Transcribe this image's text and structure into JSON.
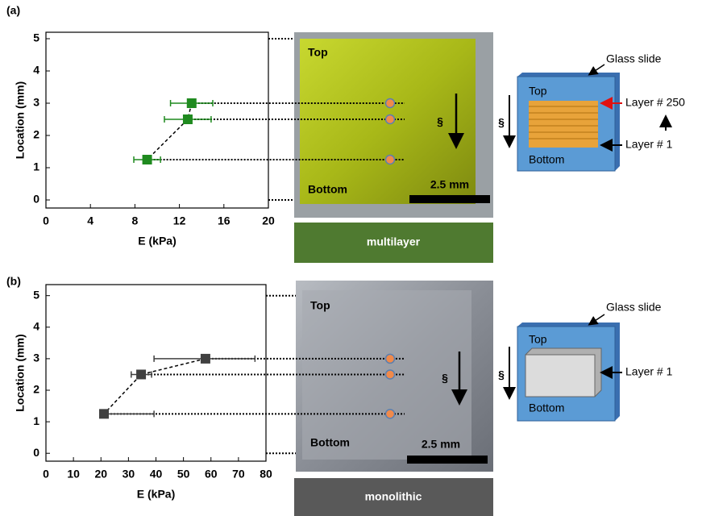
{
  "chart_data": [
    {
      "type": "scatter",
      "xlabel": "E (kPa)",
      "ylabel": "Location (mm)",
      "x": [
        13.1,
        12.75,
        9.1
      ],
      "y": [
        3,
        2.5,
        1.25
      ],
      "xerr_minus": [
        1.9,
        2.1,
        1.2
      ],
      "xerr_plus": [
        1.9,
        2.1,
        1.2
      ],
      "color": "#1f8a1f",
      "xlim": [
        0,
        20
      ],
      "ylim": [
        -0.25,
        5.2
      ],
      "xticks": [
        0,
        4,
        8,
        12,
        16,
        20
      ],
      "yticks": [
        0,
        1,
        2,
        3,
        4,
        5
      ]
    },
    {
      "type": "scatter",
      "xlabel": "E (kPa)",
      "ylabel": "Location (mm)",
      "x": [
        58,
        34.6,
        21.1
      ],
      "y": [
        3,
        2.5,
        1.25
      ],
      "xerr_minus": [
        18.7,
        3.6,
        1.5
      ],
      "xerr_plus": [
        18,
        3.8,
        18.2
      ],
      "color": "#404040",
      "xlim": [
        0,
        80
      ],
      "ylim": [
        -0.25,
        5.35
      ],
      "xticks": [
        0,
        10,
        20,
        30,
        40,
        50,
        60,
        70,
        80
      ],
      "yticks": [
        0,
        1,
        2,
        3,
        4,
        5
      ]
    }
  ],
  "panels": [
    {
      "label": "(a)",
      "photo": {
        "top": "Top",
        "bottom": "Bottom",
        "scale_bar": "2.5 mm",
        "arrow": "§",
        "caption": "multilayer"
      },
      "diagram": {
        "slide": "Glass slide",
        "top": "Top",
        "bottom": "Bottom",
        "arrow": "§",
        "layer_top": "Layer # 250",
        "layer_bottom": "Layer # 1"
      }
    },
    {
      "label": "(b)",
      "photo": {
        "top": "Top",
        "bottom": "Bottom",
        "scale_bar": "2.5 mm",
        "arrow": "§",
        "caption": "monolithic"
      },
      "diagram": {
        "slide": "Glass slide",
        "top": "Top",
        "bottom": "Bottom",
        "arrow": "§",
        "layer_bottom": "Layer # 1"
      }
    }
  ]
}
